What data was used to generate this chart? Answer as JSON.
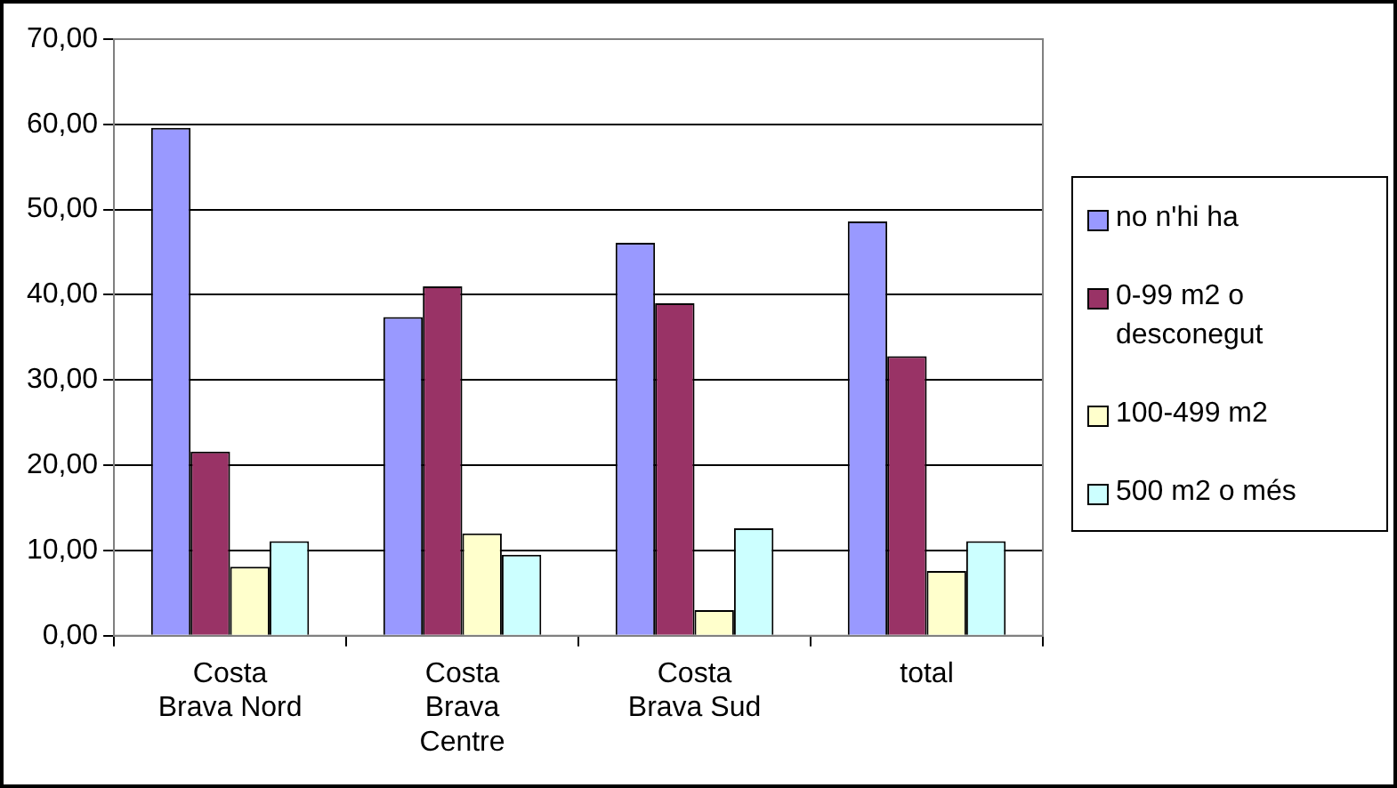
{
  "chart_data": {
    "type": "bar",
    "categories": [
      "Costa Brava Nord",
      "Costa Brava Centre",
      "Costa Brava Sud",
      "total"
    ],
    "series": [
      {
        "name": "no n'hi ha",
        "color": "#9999ff",
        "values": [
          59.6,
          37.4,
          46.1,
          48.6
        ]
      },
      {
        "name": "0-99 m2 o desconegut",
        "color": "#993366",
        "values": [
          21.6,
          41.0,
          39.0,
          32.8
        ]
      },
      {
        "name": "100-499 m2",
        "color": "#ffffcc",
        "values": [
          8.1,
          12.0,
          3.0,
          7.6
        ]
      },
      {
        "name": "500 m2 o més",
        "color": "#ccffff",
        "values": [
          11.1,
          9.5,
          12.6,
          11.1
        ]
      }
    ],
    "ylim": [
      0,
      70
    ],
    "yticks": [
      {
        "value": 0,
        "label": "0,00"
      },
      {
        "value": 10,
        "label": "10,00"
      },
      {
        "value": 20,
        "label": "20,00"
      },
      {
        "value": 30,
        "label": "30,00"
      },
      {
        "value": 40,
        "label": "40,00"
      },
      {
        "value": 50,
        "label": "50,00"
      },
      {
        "value": 60,
        "label": "60,00"
      },
      {
        "value": 70,
        "label": "70,00"
      }
    ],
    "grid": "y",
    "legend": "right"
  }
}
